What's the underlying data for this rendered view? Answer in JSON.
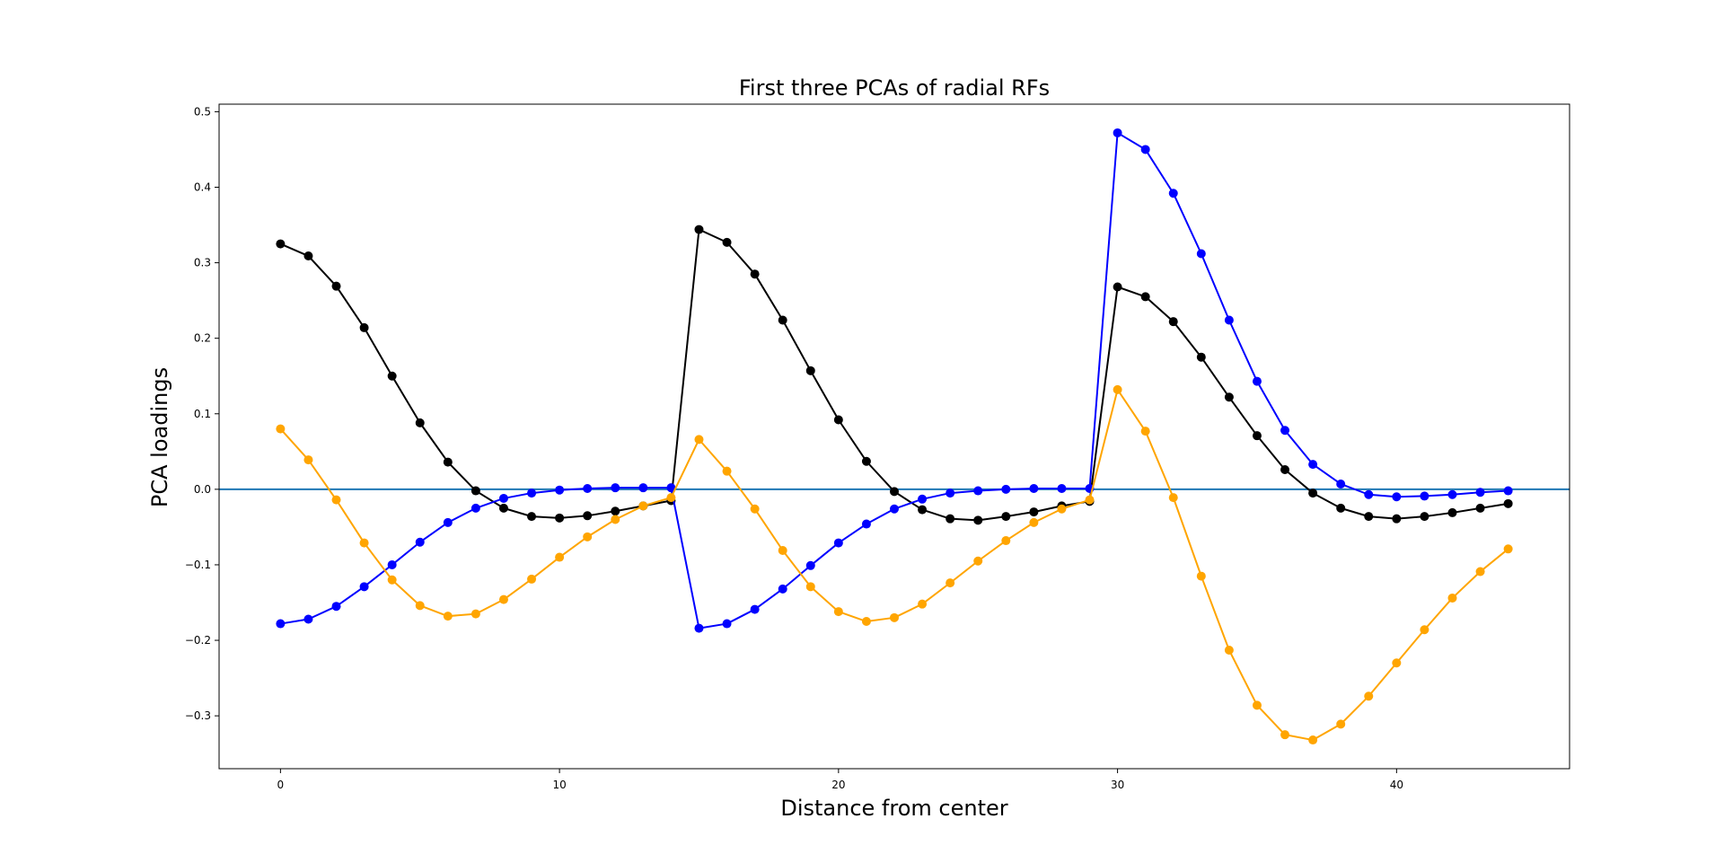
{
  "chart_data": {
    "type": "line",
    "title": "First three PCAs of radial RFs",
    "xlabel": "Distance from center",
    "ylabel": "PCA loadings",
    "xlim": [
      -2.2,
      46.2
    ],
    "ylim": [
      -0.37,
      0.51
    ],
    "xticks": [
      0,
      10,
      20,
      30,
      40
    ],
    "xtick_labels": [
      "0",
      "10",
      "20",
      "30",
      "40"
    ],
    "yticks": [
      -0.3,
      -0.2,
      -0.1,
      0.0,
      0.1,
      0.2,
      0.3,
      0.4,
      0.5
    ],
    "ytick_labels": [
      "−0.3",
      "−0.2",
      "−0.1",
      "0.0",
      "0.1",
      "0.2",
      "0.3",
      "0.4",
      "0.5"
    ],
    "grid": false,
    "hline": {
      "y": 0.0,
      "color": "#1f77b4"
    },
    "x": [
      0,
      1,
      2,
      3,
      4,
      5,
      6,
      7,
      8,
      9,
      10,
      11,
      12,
      13,
      14,
      15,
      16,
      17,
      18,
      19,
      20,
      21,
      22,
      23,
      24,
      25,
      26,
      27,
      28,
      29,
      30,
      31,
      32,
      33,
      34,
      35,
      36,
      37,
      38,
      39,
      40,
      41,
      42,
      43,
      44
    ],
    "series": [
      {
        "color": "#000000",
        "values": [
          0.325,
          0.309,
          0.269,
          0.214,
          0.15,
          0.088,
          0.036,
          -0.002,
          -0.025,
          -0.036,
          -0.038,
          -0.035,
          -0.029,
          -0.022,
          -0.015,
          0.344,
          0.327,
          0.285,
          0.224,
          0.157,
          0.092,
          0.037,
          -0.003,
          -0.027,
          -0.039,
          -0.041,
          -0.036,
          -0.03,
          -0.022,
          -0.016,
          0.268,
          0.255,
          0.222,
          0.175,
          0.122,
          0.071,
          0.026,
          -0.005,
          -0.025,
          -0.036,
          -0.039,
          -0.036,
          -0.031,
          -0.025,
          -0.019
        ]
      },
      {
        "color": "#0000ff",
        "values": [
          -0.178,
          -0.172,
          -0.155,
          -0.129,
          -0.1,
          -0.07,
          -0.044,
          -0.025,
          -0.012,
          -0.005,
          -0.001,
          0.001,
          0.002,
          0.002,
          0.002,
          -0.184,
          -0.178,
          -0.159,
          -0.132,
          -0.101,
          -0.071,
          -0.046,
          -0.026,
          -0.013,
          -0.005,
          -0.002,
          0.0,
          0.001,
          0.001,
          0.001,
          0.472,
          0.45,
          0.392,
          0.312,
          0.224,
          0.143,
          0.078,
          0.033,
          0.007,
          -0.007,
          -0.01,
          -0.009,
          -0.007,
          -0.004,
          -0.002
        ]
      },
      {
        "color": "#ffa500",
        "values": [
          0.08,
          0.039,
          -0.014,
          -0.071,
          -0.12,
          -0.154,
          -0.168,
          -0.165,
          -0.146,
          -0.119,
          -0.09,
          -0.063,
          -0.04,
          -0.022,
          -0.011,
          0.066,
          0.024,
          -0.026,
          -0.081,
          -0.129,
          -0.162,
          -0.175,
          -0.17,
          -0.152,
          -0.124,
          -0.095,
          -0.068,
          -0.044,
          -0.026,
          -0.014,
          0.132,
          0.077,
          -0.011,
          -0.115,
          -0.213,
          -0.286,
          -0.325,
          -0.332,
          -0.311,
          -0.274,
          -0.23,
          -0.186,
          -0.144,
          -0.109,
          -0.079
        ]
      }
    ]
  }
}
